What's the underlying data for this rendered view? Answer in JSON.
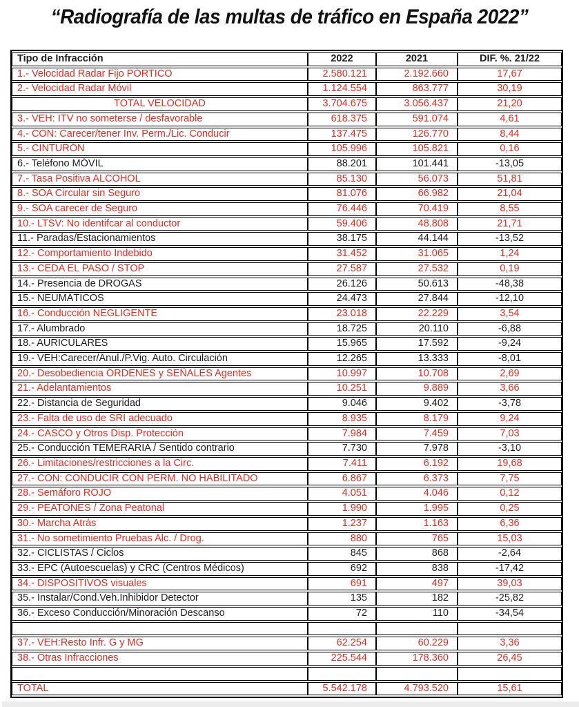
{
  "title": "“Radiografía de las multas de tráfico en España 2022”",
  "colors": {
    "red": "#e52a20",
    "ink": "#1d1d1b"
  },
  "table": {
    "headers": [
      "Tipo de Infracción",
      "2022",
      "2021",
      "DIF. %. 21/22"
    ],
    "rows": [
      {
        "type": "data",
        "red": true,
        "label": "1.- Velocidad Radar Fijo PÓRTICO",
        "v2022": "2.580.121",
        "v2021": "2.192.660",
        "dif": "17,67"
      },
      {
        "type": "data",
        "red": true,
        "label": "2.- Velocidad Radar Móvil",
        "v2022": "1.124.554",
        "v2021": "863.777",
        "dif": "30,19"
      },
      {
        "type": "data",
        "red": true,
        "total": true,
        "center": true,
        "label": "TOTAL VELOCIDAD",
        "v2022": "3.704.675",
        "v2021": "3.056.437",
        "dif": "21,20"
      },
      {
        "type": "data",
        "red": true,
        "label": "3.- VEH: ITV no someterse / desfavorable",
        "v2022": "618.375",
        "v2021": "591.074",
        "dif": "4,61"
      },
      {
        "type": "data",
        "red": true,
        "label": "4.- CON: Carecer/tener Inv. Perm./Lic. Conducir",
        "v2022": "137.475",
        "v2021": "126.770",
        "dif": "8,44"
      },
      {
        "type": "data",
        "red": true,
        "label": "5.- CINTURÓN",
        "v2022": "105.996",
        "v2021": "105.821",
        "dif": "0,16"
      },
      {
        "type": "data",
        "red": false,
        "label": "6.- Teléfono MÓVIL",
        "v2022": "88.201",
        "v2021": "101.441",
        "dif": "-13,05"
      },
      {
        "type": "data",
        "red": true,
        "label": "7.- Tasa Positiva ALCOHOL",
        "v2022": "85.130",
        "v2021": "56.073",
        "dif": "51,81"
      },
      {
        "type": "data",
        "red": true,
        "label": "8.- SOA Circular sin Seguro",
        "v2022": "81.076",
        "v2021": "66.982",
        "dif": "21,04"
      },
      {
        "type": "data",
        "red": true,
        "label": "9.- SOA carecer de Seguro",
        "v2022": "76.446",
        "v2021": "70.419",
        "dif": "8,55"
      },
      {
        "type": "data",
        "red": true,
        "label": "10.- LTSV: No identifcar al conductor",
        "v2022": "59.406",
        "v2021": "48.808",
        "dif": "21,71"
      },
      {
        "type": "data",
        "red": false,
        "label": "11.- Paradas/Estacionamientos",
        "v2022": "38.175",
        "v2021": "44.144",
        "dif": "-13,52"
      },
      {
        "type": "data",
        "red": true,
        "label": "12.- Comportamiento Indebido",
        "v2022": "31.452",
        "v2021": "31.065",
        "dif": "1,24"
      },
      {
        "type": "data",
        "red": true,
        "label": "13.- CEDA EL PASO / STOP",
        "v2022": "27.587",
        "v2021": "27.532",
        "dif": "0,19"
      },
      {
        "type": "data",
        "red": false,
        "label": "14.- Presencia de DROGAS",
        "v2022": "26.126",
        "v2021": "50.613",
        "dif": "-48,38"
      },
      {
        "type": "data",
        "red": false,
        "label": "15.- NEUMÁTICOS",
        "v2022": "24.473",
        "v2021": "27.844",
        "dif": "-12,10"
      },
      {
        "type": "data",
        "red": true,
        "label": "16.- Conducción NEGLIGENTE",
        "v2022": "23.018",
        "v2021": "22.229",
        "dif": "3,54"
      },
      {
        "type": "data",
        "red": false,
        "label": "17.- Alumbrado",
        "v2022": "18.725",
        "v2021": "20.110",
        "dif": "-6,88"
      },
      {
        "type": "data",
        "red": false,
        "label": "18.- AURICULARES",
        "v2022": "15.965",
        "v2021": "17.592",
        "dif": "-9,24"
      },
      {
        "type": "data",
        "red": false,
        "label": "19.- VEH:Carecer/Anul./P.Vig. Auto. Circulación",
        "v2022": "12.265",
        "v2021": "13.333",
        "dif": "-8,01"
      },
      {
        "type": "data",
        "red": true,
        "label": "20.- Desobediencia ÓRDENES y SEÑALES Agentes",
        "v2022": "10.997",
        "v2021": "10.708",
        "dif": "2,69"
      },
      {
        "type": "data",
        "red": true,
        "label": "21.- Adelantamientos",
        "v2022": "10.251",
        "v2021": "9.889",
        "dif": "3,66"
      },
      {
        "type": "data",
        "red": false,
        "label": "22.- Distancia de Seguridad",
        "v2022": "9.046",
        "v2021": "9.402",
        "dif": "-3,78"
      },
      {
        "type": "data",
        "red": true,
        "label": "23.- Falta de uso de SRI adecuado",
        "v2022": "8.935",
        "v2021": "8.179",
        "dif": "9,24"
      },
      {
        "type": "data",
        "red": true,
        "label": "24.- CASCO y Otros Disp. Protección",
        "v2022": "7.984",
        "v2021": "7.459",
        "dif": "7,03"
      },
      {
        "type": "data",
        "red": false,
        "label": "25.- Conducción TEMERARIA / Sentido contrario",
        "v2022": "7.730",
        "v2021": "7.978",
        "dif": "-3,10"
      },
      {
        "type": "data",
        "red": true,
        "label": "26.- Limitaciones/restricciones a la Circ.",
        "v2022": "7.411",
        "v2021": "6.192",
        "dif": "19,68"
      },
      {
        "type": "data",
        "red": true,
        "label": "27.- CON: CONDUCIR CON PERM. NO HABILITADO",
        "v2022": "6.867",
        "v2021": "6.373",
        "dif": "7,75"
      },
      {
        "type": "data",
        "red": true,
        "label": "28.- Semáforo ROJO",
        "v2022": "4.051",
        "v2021": "4.046",
        "dif": "0,12"
      },
      {
        "type": "data",
        "red": true,
        "label": "29.- PEATONES / Zona Peatonal",
        "v2022": "1.990",
        "v2021": "1.995",
        "dif": "0,25"
      },
      {
        "type": "data",
        "red": true,
        "label": "30.- Marcha Atrás",
        "v2022": "1.237",
        "v2021": "1.163",
        "dif": "6,36"
      },
      {
        "type": "data",
        "red": true,
        "label": "31.- No sometimiento Pruebas Alc. / Drog.",
        "v2022": "880",
        "v2021": "765",
        "dif": "15,03"
      },
      {
        "type": "data",
        "red": false,
        "label": "32.- CICLISTAS / Ciclos",
        "v2022": "845",
        "v2021": "868",
        "dif": "-2,64"
      },
      {
        "type": "data",
        "red": false,
        "label": "33.- EPC (Autoescuelas) y CRC (Centros Médicos)",
        "v2022": "692",
        "v2021": "838",
        "dif": "-17,42"
      },
      {
        "type": "data",
        "red": true,
        "label": "34.- DISPOSITIVOS visuales",
        "v2022": "691",
        "v2021": "497",
        "dif": "39,03"
      },
      {
        "type": "data",
        "red": false,
        "label": "35.- Instalar/Cond.Veh.Inhibidor Detector",
        "v2022": "135",
        "v2021": "182",
        "dif": "-25,82"
      },
      {
        "type": "data",
        "red": false,
        "label": "36.- Exceso Conducción/Minoración Descanso",
        "v2022": "72",
        "v2021": "110",
        "dif": "-34,54"
      },
      {
        "type": "spacer"
      },
      {
        "type": "data",
        "red": true,
        "label": "37.- VEH:Resto Infr. G y MG",
        "v2022": "62.254",
        "v2021": "60.229",
        "dif": "3,36"
      },
      {
        "type": "data",
        "red": true,
        "label": "38.- Otras Infracciones",
        "v2022": "225.544",
        "v2021": "178.360",
        "dif": "26,45"
      },
      {
        "type": "spacer"
      },
      {
        "type": "data",
        "red": true,
        "total": true,
        "label": "TOTAL",
        "v2022": "5.542.178",
        "v2021": "4.793.520",
        "dif": "15,61"
      }
    ]
  },
  "chart_data": {
    "type": "table",
    "title": "“Radiografía de las multas de tráfico en España 2022”",
    "columns": [
      "Tipo de Infracción",
      "2022",
      "2021",
      "DIF. %. 21/22"
    ],
    "rows": [
      [
        "1.- Velocidad Radar Fijo PÓRTICO",
        2580121,
        2192660,
        17.67
      ],
      [
        "2.- Velocidad Radar Móvil",
        1124554,
        863777,
        30.19
      ],
      [
        "TOTAL VELOCIDAD",
        3704675,
        3056437,
        21.2
      ],
      [
        "3.- VEH: ITV no someterse / desfavorable",
        618375,
        591074,
        4.61
      ],
      [
        "4.- CON: Carecer/tener Inv. Perm./Lic. Conducir",
        137475,
        126770,
        8.44
      ],
      [
        "5.- CINTURÓN",
        105996,
        105821,
        0.16
      ],
      [
        "6.- Teléfono MÓVIL",
        88201,
        101441,
        -13.05
      ],
      [
        "7.- Tasa Positiva ALCOHOL",
        85130,
        56073,
        51.81
      ],
      [
        "8.- SOA Circular sin Seguro",
        81076,
        66982,
        21.04
      ],
      [
        "9.- SOA carecer de Seguro",
        76446,
        70419,
        8.55
      ],
      [
        "10.- LTSV: No identifcar al conductor",
        59406,
        48808,
        21.71
      ],
      [
        "11.- Paradas/Estacionamientos",
        38175,
        44144,
        -13.52
      ],
      [
        "12.- Comportamiento Indebido",
        31452,
        31065,
        1.24
      ],
      [
        "13.- CEDA EL PASO / STOP",
        27587,
        27532,
        0.19
      ],
      [
        "14.- Presencia de DROGAS",
        26126,
        50613,
        -48.38
      ],
      [
        "15.- NEUMÁTICOS",
        24473,
        27844,
        -12.1
      ],
      [
        "16.- Conducción NEGLIGENTE",
        23018,
        22229,
        3.54
      ],
      [
        "17.- Alumbrado",
        18725,
        20110,
        -6.88
      ],
      [
        "18.- AURICULARES",
        15965,
        17592,
        -9.24
      ],
      [
        "19.- VEH:Carecer/Anul./P.Vig. Auto. Circulación",
        12265,
        13333,
        -8.01
      ],
      [
        "20.- Desobediencia ÓRDENES y SEÑALES Agentes",
        10997,
        10708,
        2.69
      ],
      [
        "21.- Adelantamientos",
        10251,
        9889,
        3.66
      ],
      [
        "22.- Distancia de Seguridad",
        9046,
        9402,
        -3.78
      ],
      [
        "23.- Falta de uso de SRI adecuado",
        8935,
        8179,
        9.24
      ],
      [
        "24.- CASCO y Otros Disp. Protección",
        7984,
        7459,
        7.03
      ],
      [
        "25.- Conducción TEMERARIA / Sentido contrario",
        7730,
        7978,
        -3.1
      ],
      [
        "26.- Limitaciones/restricciones a la Circ.",
        7411,
        6192,
        19.68
      ],
      [
        "27.- CON: CONDUCIR CON PERM. NO HABILITADO",
        6867,
        6373,
        7.75
      ],
      [
        "28.- Semáforo ROJO",
        4051,
        4046,
        0.12
      ],
      [
        "29.- PEATONES / Zona Peatonal",
        1990,
        1995,
        0.25
      ],
      [
        "30.- Marcha Atrás",
        1237,
        1163,
        6.36
      ],
      [
        "31.- No sometimiento Pruebas Alc. / Drog.",
        880,
        765,
        15.03
      ],
      [
        "32.- CICLISTAS / Ciclos",
        845,
        868,
        -2.64
      ],
      [
        "33.- EPC (Autoescuelas) y CRC (Centros Médicos)",
        692,
        838,
        -17.42
      ],
      [
        "34.- DISPOSITIVOS visuales",
        691,
        497,
        39.03
      ],
      [
        "35.- Instalar/Cond.Veh.Inhibidor Detector",
        135,
        182,
        -25.82
      ],
      [
        "36.- Exceso Conducción/Minoración Descanso",
        72,
        110,
        -34.54
      ],
      [
        "37.- VEH:Resto Infr. G y MG",
        62254,
        60229,
        3.36
      ],
      [
        "38.- Otras Infracciones",
        225544,
        178360,
        26.45
      ],
      [
        "TOTAL",
        5542178,
        4793520,
        15.61
      ]
    ]
  }
}
